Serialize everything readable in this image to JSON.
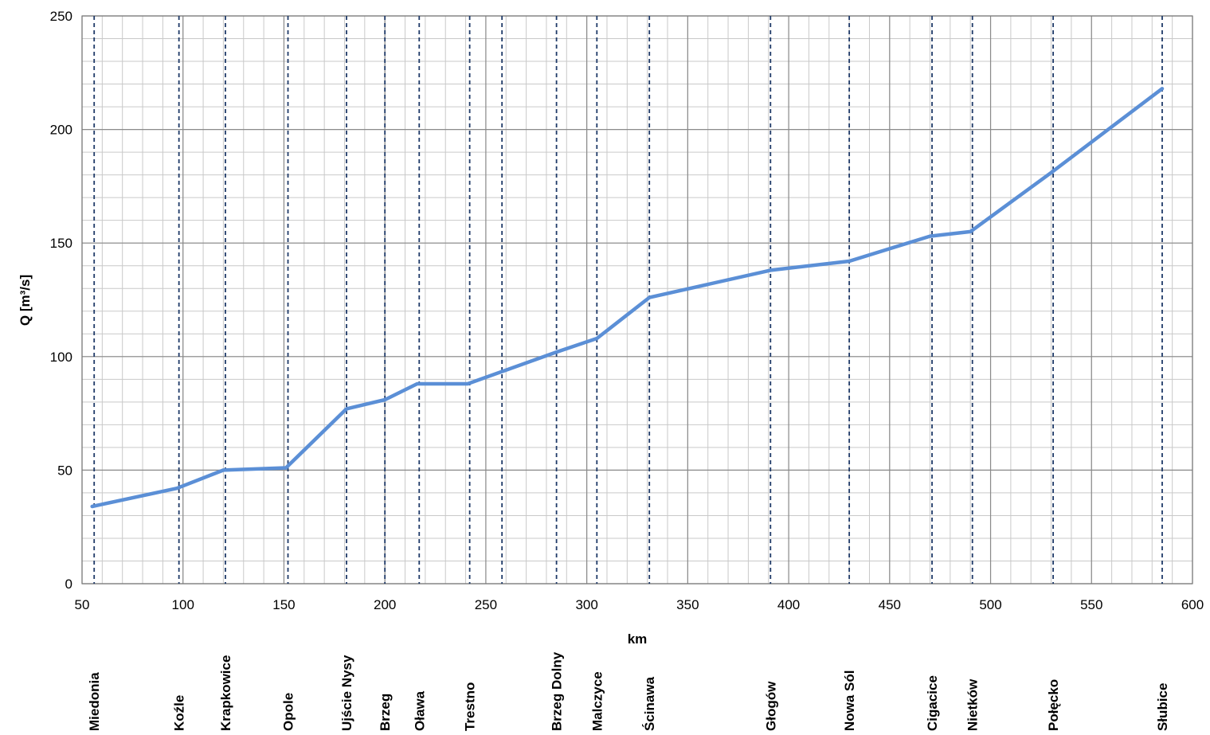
{
  "chart_data": {
    "type": "line",
    "title": "",
    "xlabel": "km",
    "ylabel": "Q [m³/s]",
    "xlim": [
      50,
      600
    ],
    "ylim": [
      0,
      250
    ],
    "x_ticks": [
      50,
      100,
      150,
      200,
      250,
      300,
      350,
      400,
      450,
      500,
      550,
      600
    ],
    "y_ticks": [
      0,
      50,
      100,
      150,
      200,
      250
    ],
    "minor_x_step": 10,
    "minor_y_step": 10,
    "grid": true,
    "line_color": "#5b8fd6",
    "marker_line_color": "#1f3a68",
    "series": [
      {
        "x": [
          55,
          97,
          120,
          151,
          181,
          200,
          216,
          241,
          285,
          305,
          331,
          391,
          430,
          470,
          490,
          530,
          585
        ],
        "values": [
          34,
          42,
          50,
          51,
          77,
          81,
          88,
          88,
          102,
          108,
          126,
          138,
          142,
          153,
          155,
          181,
          218
        ]
      }
    ],
    "stations": [
      {
        "label": "Miedonia",
        "km": 56
      },
      {
        "label": "Koźle",
        "km": 98
      },
      {
        "label": "Krapkowice",
        "km": 121
      },
      {
        "label": "Opole",
        "km": 152
      },
      {
        "label": "Ujście Nysy",
        "km": 181
      },
      {
        "label": "Brzeg",
        "km": 200
      },
      {
        "label": "Oława",
        "km": 217
      },
      {
        "label": "Trestno",
        "km": 242
      },
      {
        "label": "",
        "km": 258
      },
      {
        "label": "Brzeg Dolny",
        "km": 285
      },
      {
        "label": "Malczyce",
        "km": 305
      },
      {
        "label": "Ścinawa",
        "km": 331
      },
      {
        "label": "Głogów",
        "km": 391
      },
      {
        "label": "Nowa  Sól",
        "km": 430
      },
      {
        "label": "Cigacice",
        "km": 471
      },
      {
        "label": "Nietków",
        "km": 491
      },
      {
        "label": "Połęcko",
        "km": 531
      },
      {
        "label": "Słubice",
        "km": 585
      }
    ]
  }
}
